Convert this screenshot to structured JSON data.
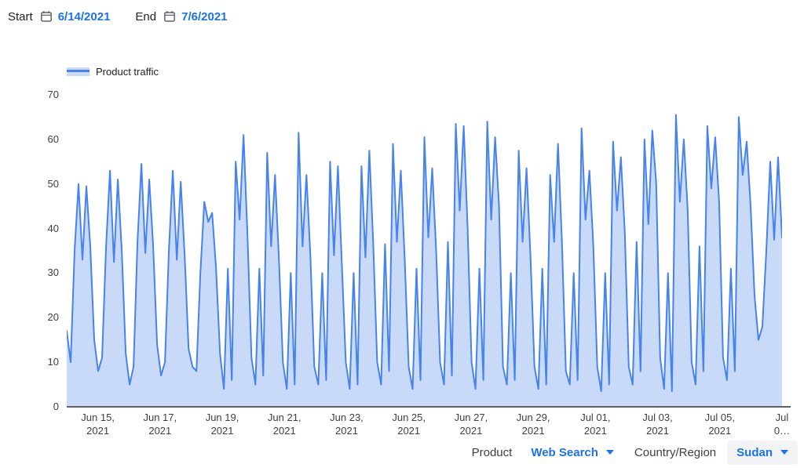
{
  "date_range": {
    "start_label": "Start",
    "start_value": "6/14/2021",
    "end_label": "End",
    "end_value": "7/6/2021"
  },
  "filters": {
    "product_label": "Product",
    "product_value": "Web Search",
    "region_label": "Country/Region",
    "region_value": "Sudan"
  },
  "colors": {
    "line": "#4683ee",
    "fill": "#c9daf9",
    "link": "#1a73e8",
    "axis_text": "#3c4043",
    "axis_line": "#616161",
    "chip_bg": "#f1f3f4"
  },
  "chart_data": {
    "type": "area",
    "legend": "Product traffic",
    "ylabel": "",
    "xlabel": "",
    "ylim": [
      0,
      70
    ],
    "y_ticks": [
      70,
      60,
      50,
      40,
      30,
      20,
      10,
      0
    ],
    "grid": false,
    "legend_position": "top-left",
    "x_ticks": [
      {
        "day": 1,
        "lines": [
          "Jun 15,",
          "2021"
        ]
      },
      {
        "day": 3,
        "lines": [
          "Jun 17,",
          "2021"
        ]
      },
      {
        "day": 5,
        "lines": [
          "Jun 19,",
          "2021"
        ]
      },
      {
        "day": 7,
        "lines": [
          "Jun 21,",
          "2021"
        ]
      },
      {
        "day": 9,
        "lines": [
          "Jun 23,",
          "2021"
        ]
      },
      {
        "day": 11,
        "lines": [
          "Jun 25,",
          "2021"
        ]
      },
      {
        "day": 13,
        "lines": [
          "Jun 27,",
          "2021"
        ]
      },
      {
        "day": 15,
        "lines": [
          "Jun 29,",
          "2021"
        ]
      },
      {
        "day": 17,
        "lines": [
          "Jul 01,",
          "2021"
        ]
      },
      {
        "day": 19,
        "lines": [
          "Jul 03,",
          "2021"
        ]
      },
      {
        "day": 21,
        "lines": [
          "Jul 05,",
          "2021"
        ]
      },
      {
        "day": 23,
        "lines": [
          "Jul",
          "0…"
        ]
      }
    ],
    "days_total": 23,
    "points_per_day": 8,
    "values": [
      17,
      10,
      35,
      50,
      33,
      49.5,
      36,
      15,
      8,
      11,
      36,
      53,
      32.5,
      51,
      35,
      12,
      5,
      9,
      37,
      54.5,
      34.5,
      51,
      36,
      14,
      7,
      10,
      35,
      53,
      33,
      50.5,
      34,
      13,
      9,
      8,
      30,
      46,
      41.5,
      43.5,
      31,
      12,
      4,
      31,
      6,
      55,
      42,
      61,
      38,
      11,
      5,
      31,
      7,
      57,
      36,
      52,
      33,
      10,
      4,
      30,
      5,
      61.5,
      36,
      52,
      34,
      9,
      5,
      30,
      6,
      55,
      34,
      54,
      32,
      10,
      4,
      30,
      5,
      54,
      33.5,
      57.5,
      36.5,
      10,
      5,
      36.5,
      8,
      59,
      37,
      53,
      33,
      9,
      4,
      31,
      6,
      60.5,
      38,
      53.5,
      35,
      10,
      5,
      37,
      7,
      63.5,
      44,
      63,
      40,
      10,
      4,
      31,
      6,
      64,
      42,
      60.5,
      45,
      9,
      5,
      30,
      6,
      57.5,
      37,
      53.5,
      34,
      9,
      4,
      31,
      5,
      52,
      37,
      59,
      37,
      8,
      5,
      30,
      6,
      62.5,
      42,
      53,
      36,
      9,
      3.5,
      30,
      5,
      59.5,
      44,
      56,
      39,
      9,
      5,
      37,
      8,
      60,
      41,
      62,
      50,
      11,
      4,
      30,
      3.5,
      65.5,
      46,
      60,
      44,
      10,
      5,
      36,
      8,
      63,
      49,
      60.5,
      46,
      11,
      6,
      31,
      8,
      65,
      52,
      59.5,
      45,
      25,
      15,
      18,
      35,
      55,
      37.5,
      56,
      38
    ]
  }
}
